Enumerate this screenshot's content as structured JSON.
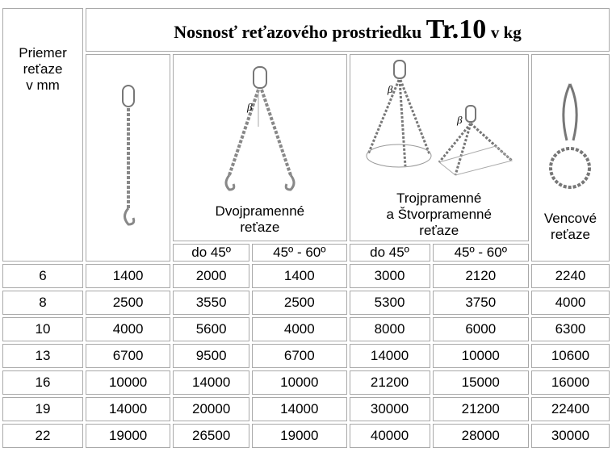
{
  "header": {
    "title_main": "Nosnosť reťazového prostriedku",
    "title_code": "Tr.10",
    "title_unit": "v kg",
    "diameter_lines": [
      "Priemer",
      "reťaze",
      "v mm"
    ],
    "two_leg_lines": [
      "Dvojpramenné",
      "reťaze"
    ],
    "multi_leg_lines": [
      "Trojpramenné",
      "a Štvorpramenné",
      "reťaze"
    ],
    "endless_lines": [
      "Vencové",
      "reťaze"
    ],
    "angle_label": "β",
    "sub_columns": [
      "do 45º",
      "45º - 60º",
      "do 45º",
      "45º - 60º"
    ]
  },
  "table": {
    "rows": [
      [
        6,
        1400,
        2000,
        1400,
        3000,
        2120,
        2240
      ],
      [
        8,
        2500,
        3550,
        2500,
        5300,
        3750,
        4000
      ],
      [
        10,
        4000,
        5600,
        4000,
        8000,
        6000,
        6300
      ],
      [
        13,
        6700,
        9500,
        6700,
        14000,
        10000,
        10600
      ],
      [
        16,
        10000,
        14000,
        10000,
        21200,
        15000,
        16000
      ],
      [
        19,
        14000,
        20000,
        14000,
        30000,
        21200,
        22400
      ],
      [
        22,
        19000,
        26500,
        19000,
        40000,
        28000,
        30000
      ]
    ]
  }
}
